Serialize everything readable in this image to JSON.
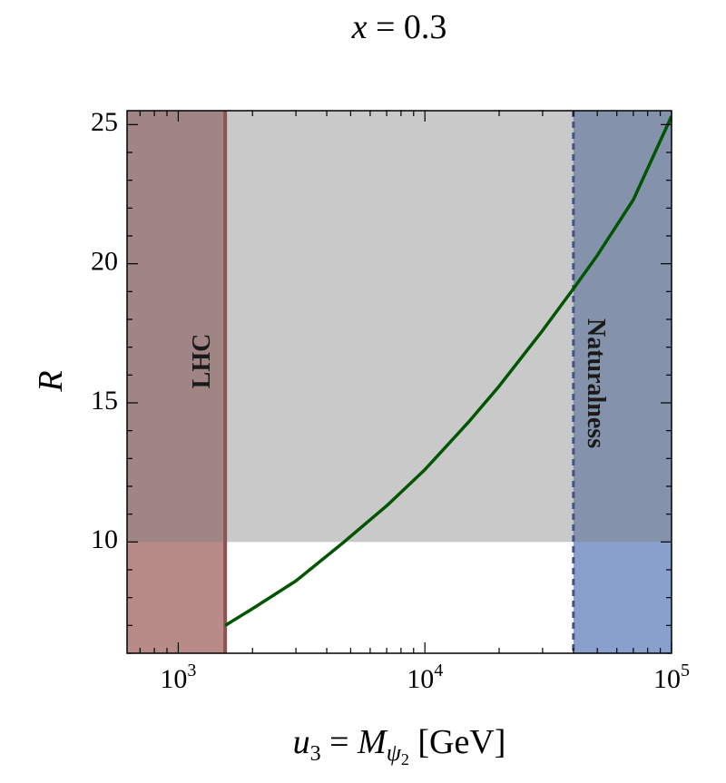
{
  "chart_data": {
    "type": "line",
    "title": {
      "var": "x",
      "eq": " = ",
      "value": "0.3"
    },
    "xlabel": {
      "var": "u",
      "sub": "3",
      "eq": " = ",
      "var2": "M",
      "sub2": "ψ",
      "subsub2": "2",
      "unit": " [GeV]"
    },
    "ylabel": "R",
    "x_scale": "log",
    "xlim": [
      620,
      100000
    ],
    "ylim": [
      6,
      25.5
    ],
    "x_ticks": [
      {
        "value": 1000,
        "base": "10",
        "exp": "3"
      },
      {
        "value": 10000,
        "base": "10",
        "exp": "4"
      },
      {
        "value": 100000,
        "base": "10",
        "exp": "5"
      }
    ],
    "y_ticks": [
      {
        "value": 10,
        "label": "10"
      },
      {
        "value": 15,
        "label": "15"
      },
      {
        "value": 20,
        "label": "20"
      },
      {
        "value": 25,
        "label": "25"
      }
    ],
    "series": [
      {
        "color": "#005500",
        "x": [
          1550,
          2000,
          3000,
          4700,
          7000,
          10000,
          15000,
          20000,
          30000,
          40000,
          50000,
          70000,
          100000
        ],
        "y": [
          7.0,
          7.6,
          8.6,
          10.0,
          11.3,
          12.6,
          14.3,
          15.6,
          17.6,
          19.1,
          20.3,
          22.3,
          25.3
        ]
      }
    ],
    "regions": [
      {
        "name": "lhc-excluded-band",
        "x_range": [
          620,
          1550
        ],
        "y_range": [
          6,
          25.5
        ],
        "color": "#b88a88",
        "opacity": 1
      },
      {
        "name": "naturalness-excluded-band",
        "x_range": [
          40000,
          100000
        ],
        "y_range": [
          6,
          25.5
        ],
        "color": "#8aa0cc",
        "opacity": 1
      },
      {
        "name": "r-above-10-region",
        "x_range": [
          620,
          100000
        ],
        "y_range": [
          10,
          25.5
        ],
        "color": "#7f7f7f",
        "opacity": 0.42
      }
    ],
    "boundaries": [
      {
        "name": "lhc-boundary-line",
        "x": 1550,
        "color": "#8a5452",
        "dashed": false
      },
      {
        "name": "naturalness-boundary-line",
        "x": 40000,
        "color": "#44557f",
        "dashed": true
      }
    ],
    "annotations": [
      {
        "name": "lhc-label",
        "text": "LHC",
        "x": 1270,
        "y": 16.5,
        "rotate": -90
      },
      {
        "name": "naturalness-label",
        "text": "Naturalness",
        "x": 48500,
        "y": 15.7,
        "rotate": 90
      }
    ]
  }
}
